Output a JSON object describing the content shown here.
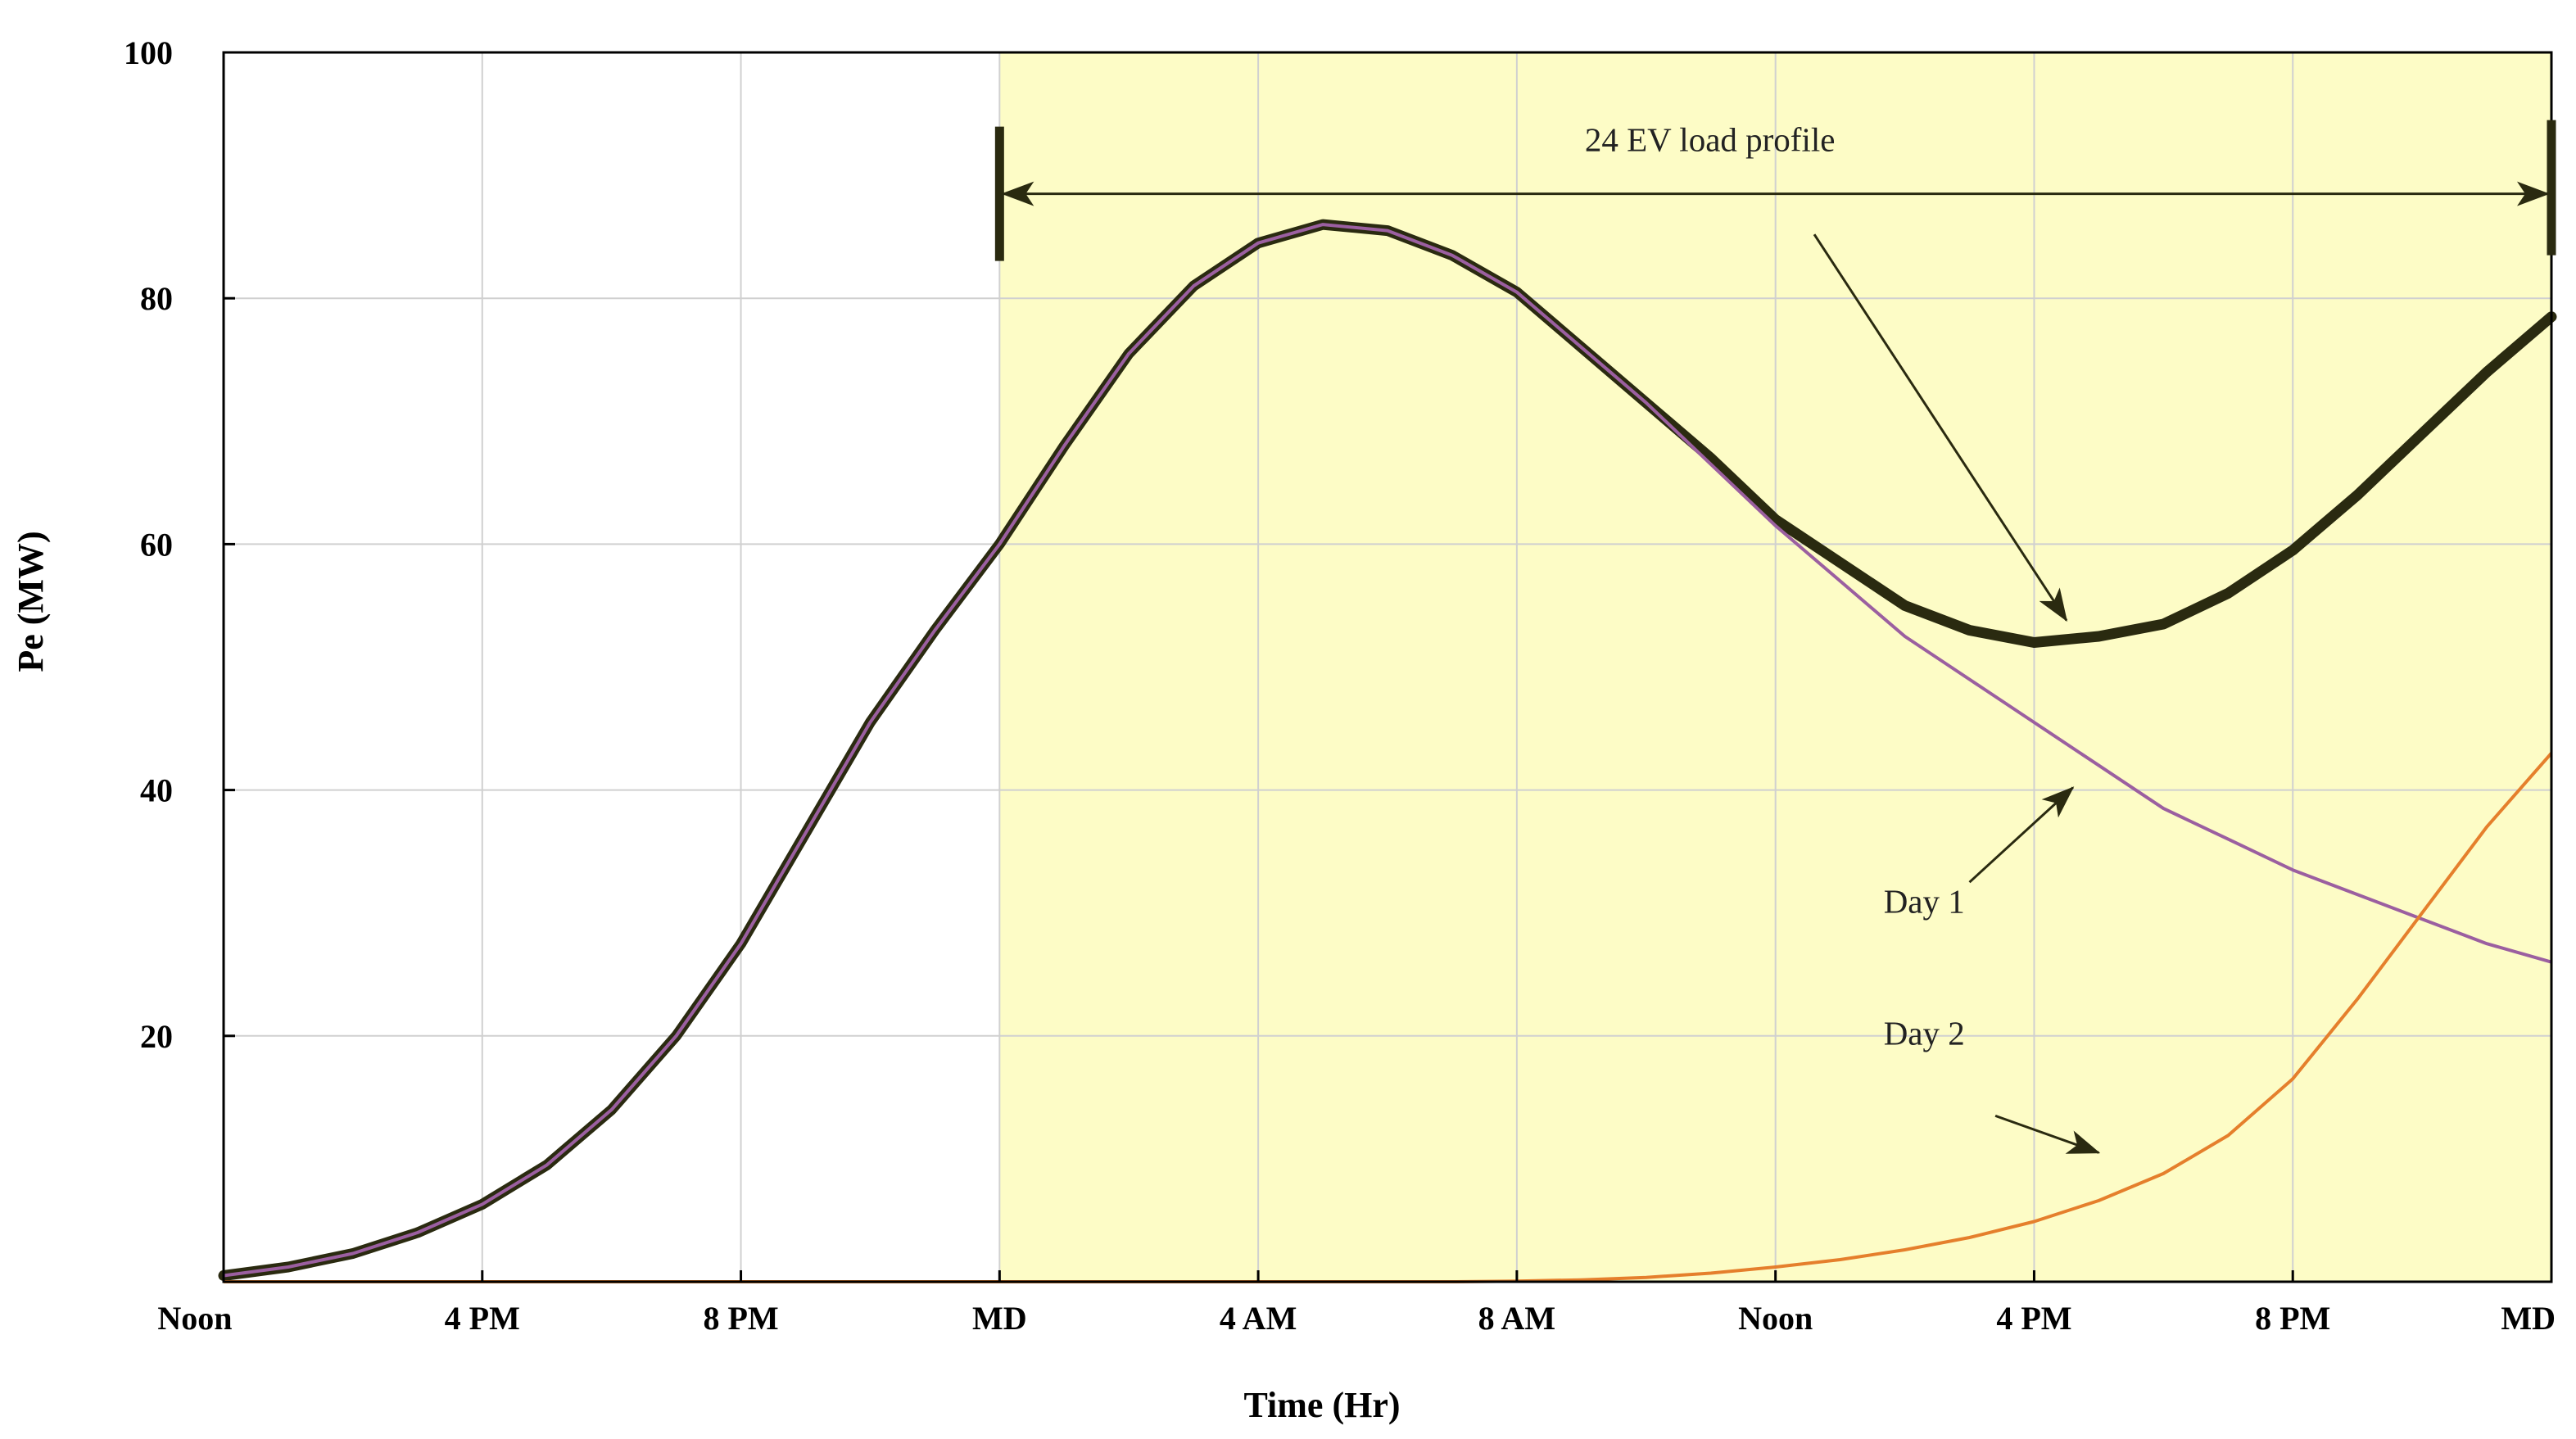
{
  "chart_data": {
    "type": "line",
    "title": "",
    "xlabel": "Time (Hr)",
    "ylabel": "Pe (MW)",
    "xlim": [
      0,
      36
    ],
    "ylim": [
      0,
      100
    ],
    "grid": true,
    "x_ticks": [
      {
        "value": 0,
        "label": "Noon"
      },
      {
        "value": 4,
        "label": "4 PM"
      },
      {
        "value": 8,
        "label": "8 PM"
      },
      {
        "value": 12,
        "label": "MD"
      },
      {
        "value": 16,
        "label": "4 AM"
      },
      {
        "value": 20,
        "label": "8 AM"
      },
      {
        "value": 24,
        "label": "Noon"
      },
      {
        "value": 28,
        "label": "4 PM"
      },
      {
        "value": 32,
        "label": "8 PM"
      },
      {
        "value": 36,
        "label": "MD"
      }
    ],
    "y_ticks": [
      {
        "value": 20,
        "label": "20"
      },
      {
        "value": 40,
        "label": "40"
      },
      {
        "value": 60,
        "label": "60"
      },
      {
        "value": 80,
        "label": "80"
      },
      {
        "value": 100,
        "label": "100"
      }
    ],
    "highlight_region": {
      "x_start": 12,
      "x_end": 36,
      "color": "#fdfcc6"
    },
    "series": [
      {
        "name": "Day 1",
        "color": "#9b5fa0",
        "x": [
          0,
          1,
          2,
          3,
          4,
          5,
          6,
          7,
          8,
          9,
          10,
          11,
          12,
          13,
          14,
          15,
          16,
          17,
          18,
          19,
          20,
          21,
          22,
          23,
          24,
          25,
          26,
          27,
          28,
          29,
          30,
          31,
          32,
          33,
          34,
          35,
          36
        ],
        "values": [
          0.5,
          1.2,
          2.3,
          4.0,
          6.3,
          9.5,
          14.0,
          20.0,
          27.5,
          36.5,
          45.5,
          53.0,
          60.0,
          68.0,
          75.5,
          81.0,
          84.5,
          86.0,
          85.5,
          83.5,
          80.5,
          76.0,
          71.5,
          66.5,
          61.5,
          57.0,
          52.5,
          49.0,
          45.5,
          42.0,
          38.5,
          36.0,
          33.5,
          31.5,
          29.5,
          27.5,
          26.0
        ]
      },
      {
        "name": "Day 2",
        "color": "#e57f2c",
        "x": [
          0,
          4,
          8,
          12,
          16,
          19,
          20,
          21,
          22,
          23,
          24,
          25,
          26,
          27,
          28,
          29,
          30,
          31,
          32,
          33,
          34,
          35,
          36
        ],
        "values": [
          0,
          0,
          0,
          0,
          0,
          0,
          0.05,
          0.15,
          0.35,
          0.7,
          1.2,
          1.8,
          2.6,
          3.6,
          4.9,
          6.6,
          8.8,
          11.9,
          16.5,
          23.0,
          30.0,
          37.0,
          43.0
        ]
      },
      {
        "name": "24 EV load profile",
        "color": "#2a2a10",
        "x": [
          0,
          1,
          2,
          3,
          4,
          5,
          6,
          7,
          8,
          9,
          10,
          11,
          12,
          13,
          14,
          15,
          16,
          17,
          18,
          19,
          20,
          21,
          22,
          23,
          24,
          25,
          26,
          27,
          28,
          29,
          30,
          31,
          32,
          33,
          34,
          35,
          36
        ],
        "values": [
          0.5,
          1.2,
          2.3,
          4.0,
          6.3,
          9.5,
          14.0,
          20.0,
          27.5,
          36.5,
          45.5,
          53.0,
          60.0,
          68.0,
          75.5,
          81.0,
          84.5,
          86.0,
          85.5,
          83.5,
          80.5,
          76.0,
          71.5,
          67.0,
          62.0,
          58.5,
          55.0,
          53.0,
          52.0,
          52.5,
          53.5,
          56.0,
          59.5,
          64.0,
          69.0,
          74.0,
          78.5
        ]
      }
    ],
    "annotations": [
      {
        "text": "24 EV load profile",
        "type": "span-arrow",
        "x_start": 12,
        "x_end": 36,
        "y": 88.5
      },
      {
        "text": "Day 1",
        "type": "label-arrow",
        "label_x": 26.3,
        "label_y": 30.0
      },
      {
        "text": "Day 2",
        "type": "label-arrow",
        "label_x": 26.3,
        "label_y": 19.3
      }
    ]
  }
}
